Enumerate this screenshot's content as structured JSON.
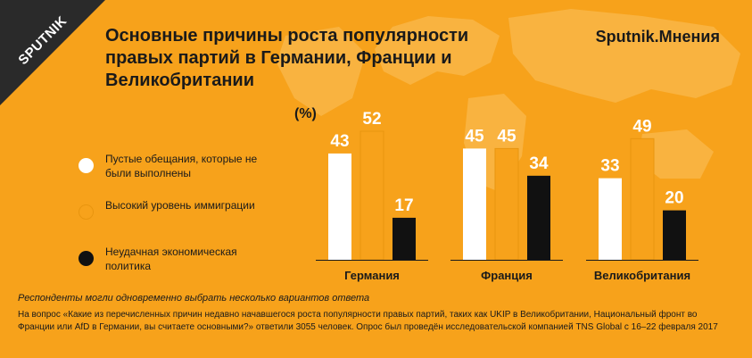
{
  "title": "Основные причины роста популярности правых партий в Германии, Франции и Великобритании",
  "brand": "Sputnik.Мнения",
  "logo": "SPUTNIK",
  "colors": {
    "background": "#f7a21b",
    "series_white": "#ffffff",
    "series_orange": "#f7a21b",
    "series_black": "#111111",
    "map": "#f9b340"
  },
  "chart_data": {
    "type": "bar",
    "unit_label": "(%)",
    "categories": [
      "Германия",
      "Франция",
      "Великобритания"
    ],
    "series": [
      {
        "name": "Пустые обещания, которые не были выполнены",
        "values": [
          43,
          45,
          33
        ]
      },
      {
        "name": "Высокий уровень иммиграции",
        "values": [
          52,
          45,
          49
        ]
      },
      {
        "name": "Неудачная экономическая политика",
        "values": [
          17,
          34,
          20
        ]
      }
    ],
    "ylim": [
      0,
      52
    ]
  },
  "note": "Респонденты могли одновременно выбрать несколько вариантов ответа",
  "footnote": "На вопрос «Какие из перечисленных причин недавно начавшегося роста популярности правых партий, таких как UKIP в Великобритании, Национальный фронт во Франции или AfD в Германии, вы считаете основными?» ответили 3055 человек. Опрос был проведён исследовательской компанией TNS Global с 16–22 февраля 2017"
}
